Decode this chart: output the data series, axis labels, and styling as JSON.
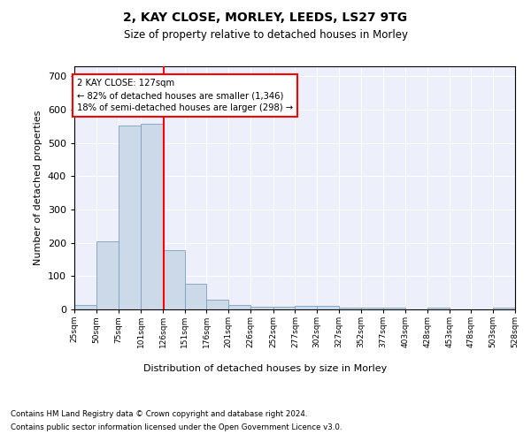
{
  "title1": "2, KAY CLOSE, MORLEY, LEEDS, LS27 9TG",
  "title2": "Size of property relative to detached houses in Morley",
  "xlabel": "Distribution of detached houses by size in Morley",
  "ylabel": "Number of detached properties",
  "bar_color": "#ccd9e8",
  "bar_edge_color": "#7aa0c0",
  "vline_x": 127,
  "vline_color": "red",
  "annotation_title": "2 KAY CLOSE: 127sqm",
  "annotation_line1": "← 82% of detached houses are smaller (1,346)",
  "annotation_line2": "18% of semi-detached houses are larger (298) →",
  "bin_edges": [
    25,
    50,
    75,
    101,
    126,
    151,
    176,
    201,
    226,
    252,
    277,
    302,
    327,
    352,
    377,
    403,
    428,
    453,
    478,
    503,
    528
  ],
  "bar_heights": [
    13,
    204,
    552,
    558,
    178,
    77,
    29,
    12,
    9,
    8,
    10,
    10,
    6,
    5,
    5,
    0,
    5,
    0,
    0,
    5
  ],
  "ylim": [
    0,
    730
  ],
  "yticks": [
    0,
    100,
    200,
    300,
    400,
    500,
    600,
    700
  ],
  "footnote1": "Contains HM Land Registry data © Crown copyright and database right 2024.",
  "footnote2": "Contains public sector information licensed under the Open Government Licence v3.0.",
  "plot_bg_color": "#edf0fa"
}
